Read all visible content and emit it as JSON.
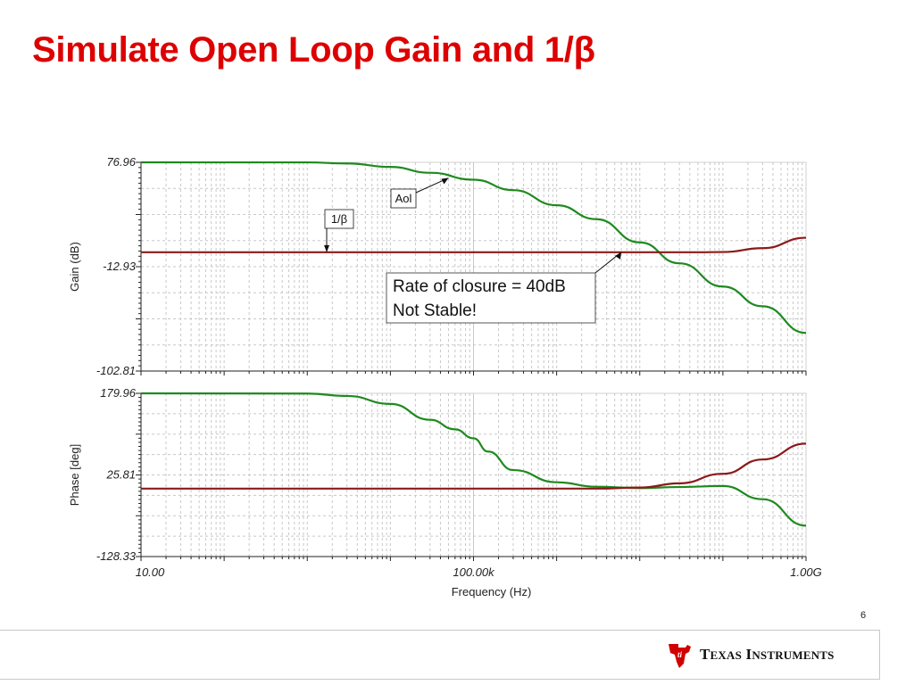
{
  "slide": {
    "title": "Simulate Open Loop Gain and 1/β",
    "page_number": "6",
    "logo_text": "Texas Instruments"
  },
  "colors": {
    "title": "#dd0000",
    "aol": "#1e8a1e",
    "beta": "#8b1a1a",
    "grid": "#c8c8c8"
  },
  "chart_data": [
    {
      "type": "line",
      "title": "",
      "xlabel": "Frequency (Hz)",
      "ylabel": "Gain (dB)",
      "xscale": "log",
      "xlim": [
        10,
        1000000000
      ],
      "ylim": [
        -102.81,
        76.96
      ],
      "yticks": [
        "76.96",
        "-12.93",
        "-102.81"
      ],
      "grid": true,
      "series": [
        {
          "name": "Aol",
          "x": [
            10,
            1000,
            3000,
            10000,
            30000,
            100000,
            300000,
            1000000,
            3000000,
            10000000,
            30000000,
            100000000,
            300000000,
            1000000000
          ],
          "y": [
            76.96,
            76.9,
            76.0,
            73.0,
            68.0,
            62.0,
            53.0,
            40.0,
            28.0,
            8.0,
            -10.0,
            -30.0,
            -47.0,
            -70.0
          ]
        },
        {
          "name": "1/β",
          "x": [
            10,
            100000,
            1000000,
            10000000,
            30000000,
            50000000,
            100000000,
            300000000,
            1000000000
          ],
          "y": [
            -0.5,
            -0.5,
            -0.5,
            -0.5,
            -0.5,
            -0.5,
            -0.3,
            3.0,
            12.0
          ]
        }
      ],
      "annotations": [
        {
          "label": "Aol",
          "x": 50000,
          "y": 63.5
        },
        {
          "label": "1/β",
          "x": 2000,
          "y": -0.5
        },
        {
          "label": "Rate of closure = 40dB",
          "line2": "Not Stable!",
          "x": 1000000,
          "y": -0.5
        }
      ]
    },
    {
      "type": "line",
      "title": "",
      "xlabel": "Frequency (Hz)",
      "ylabel": "Phase [deg]",
      "xscale": "log",
      "xlim": [
        10,
        1000000000
      ],
      "ylim": [
        -128.33,
        179.96
      ],
      "yticks": [
        "179.96",
        "25.81",
        "-128.33"
      ],
      "xticks": [
        "10.00",
        "100.00k",
        "1.00G"
      ],
      "grid": true,
      "series": [
        {
          "name": "Aol",
          "x": [
            10,
            1000,
            3000,
            10000,
            30000,
            60000,
            100000,
            150000,
            300000,
            1000000,
            3000000,
            10000000,
            30000000,
            100000000,
            300000000,
            1000000000
          ],
          "y": [
            179.96,
            179.5,
            175.0,
            160.0,
            130.0,
            112.0,
            95.0,
            70.0,
            35.0,
            12.0,
            3.5,
            1.0,
            3.0,
            5.0,
            -20.0,
            -70.0
          ]
        },
        {
          "name": "1/β",
          "x": [
            10,
            1000000,
            3000000,
            10000000,
            30000000,
            100000000,
            300000000,
            1000000000
          ],
          "y": [
            0.0,
            0.0,
            0.0,
            2.0,
            10.0,
            28.0,
            55.0,
            85.0
          ]
        }
      ]
    }
  ]
}
